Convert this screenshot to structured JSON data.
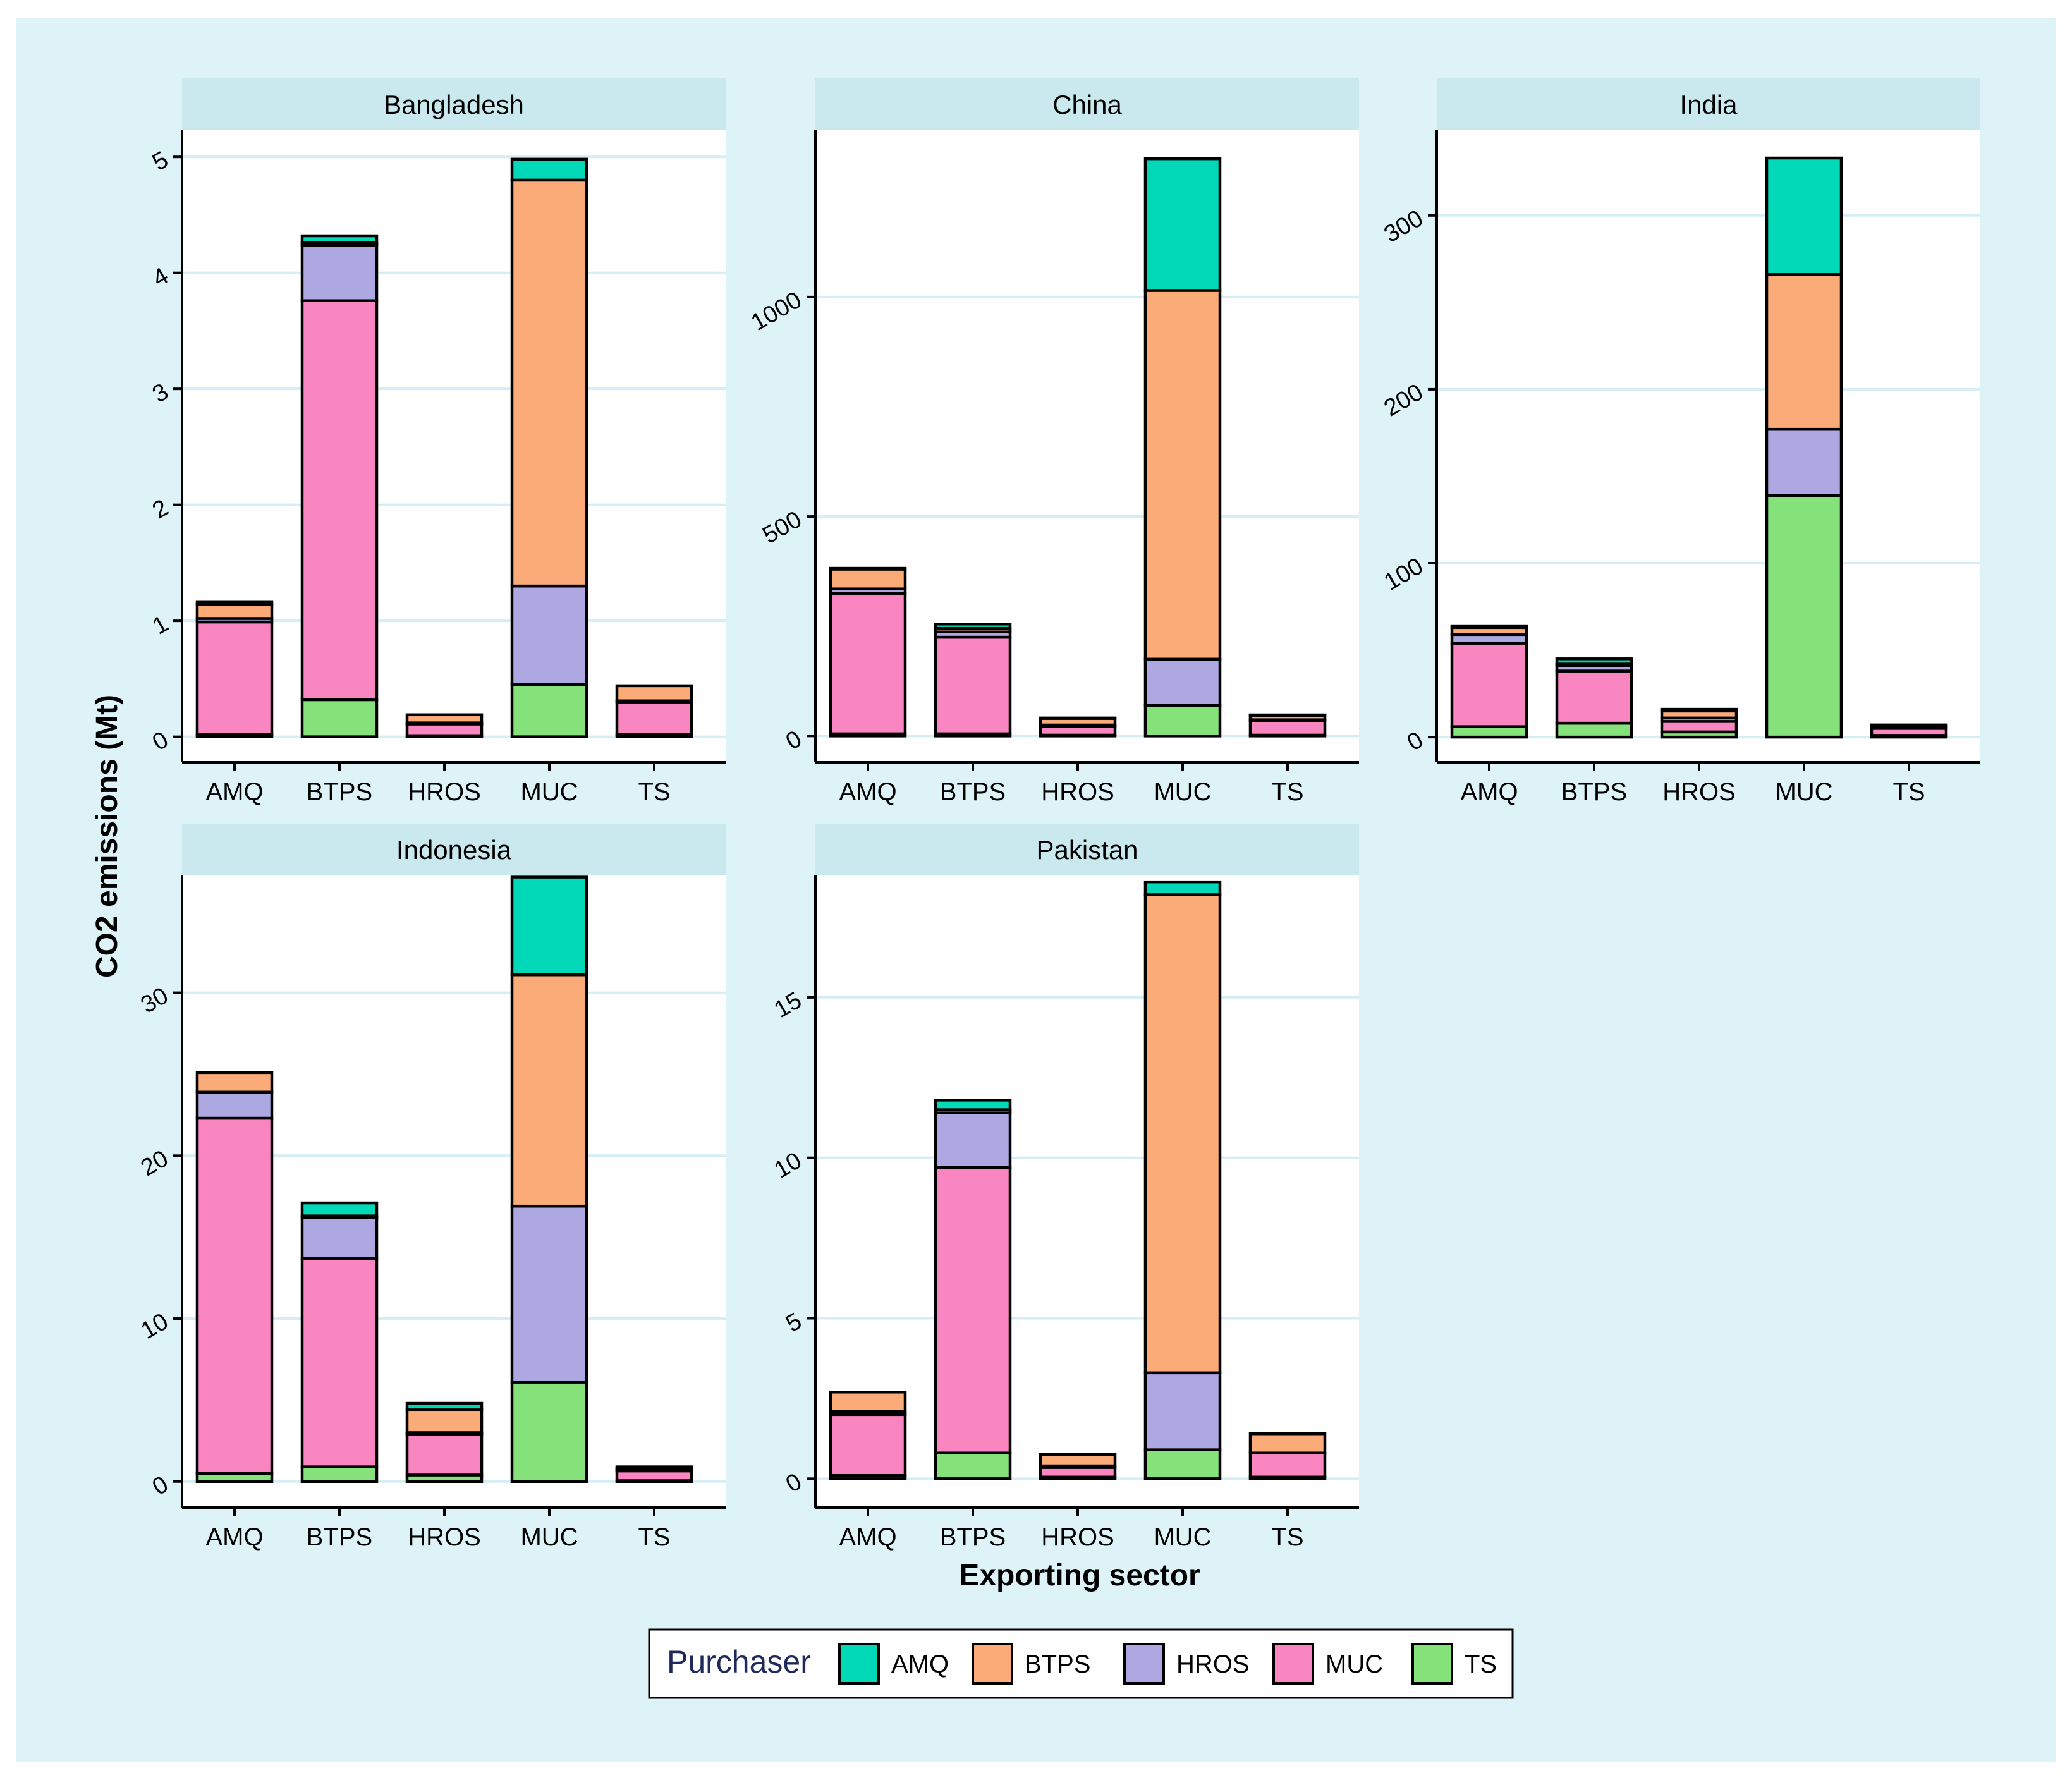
{
  "chart_data": {
    "type": "bar",
    "stacked": true,
    "xlabel": "Exporting sector",
    "ylabel": "CO2 emissions (Mt)",
    "categories": [
      "AMQ",
      "BTPS",
      "HROS",
      "MUC",
      "TS"
    ],
    "legend": {
      "title": "Purchaser",
      "placement": "bottom",
      "items": [
        "AMQ",
        "BTPS",
        "HROS",
        "MUC",
        "TS"
      ]
    },
    "colors": {
      "AMQ": "#00d8b8",
      "BTPS": "#fbab77",
      "HROS": "#ada7e2",
      "MUC": "#f985c1",
      "TS": "#85e27a"
    },
    "stack_order_bottom_to_top": [
      "TS",
      "MUC",
      "HROS",
      "BTPS",
      "AMQ"
    ],
    "panels": [
      {
        "title": "Bangladesh",
        "yticks": [
          0,
          1,
          2,
          3,
          4,
          5
        ],
        "ylim": [
          -0.22,
          5.23
        ],
        "bars": [
          {
            "category": "AMQ",
            "TS": 0.02,
            "MUC": 0.97,
            "HROS": 0.03,
            "BTPS": 0.12,
            "AMQ": 0.02
          },
          {
            "category": "BTPS",
            "TS": 0.32,
            "MUC": 3.44,
            "HROS": 0.48,
            "BTPS": 0.02,
            "AMQ": 0.06
          },
          {
            "category": "HROS",
            "TS": 0.01,
            "MUC": 0.1,
            "HROS": 0.01,
            "BTPS": 0.07,
            "AMQ": 0.0
          },
          {
            "category": "MUC",
            "TS": 0.45,
            "MUC": 0.0,
            "HROS": 0.85,
            "BTPS": 3.5,
            "AMQ": 0.18
          },
          {
            "category": "TS",
            "TS": 0.02,
            "MUC": 0.28,
            "HROS": 0.01,
            "BTPS": 0.13,
            "AMQ": 0.0
          }
        ]
      },
      {
        "title": "China",
        "yticks": [
          0,
          500,
          1000
        ],
        "ylim": [
          -60,
          1380
        ],
        "bars": [
          {
            "category": "AMQ",
            "TS": 5,
            "MUC": 320,
            "HROS": 10,
            "BTPS": 45,
            "AMQ": 2
          },
          {
            "category": "BTPS",
            "TS": 5,
            "MUC": 220,
            "HROS": 12,
            "BTPS": 8,
            "AMQ": 10
          },
          {
            "category": "HROS",
            "TS": 2,
            "MUC": 20,
            "HROS": 3,
            "BTPS": 15,
            "AMQ": 1
          },
          {
            "category": "MUC",
            "TS": 70,
            "MUC": 0,
            "HROS": 105,
            "BTPS": 840,
            "AMQ": 300
          },
          {
            "category": "TS",
            "TS": 2,
            "MUC": 32,
            "HROS": 3,
            "BTPS": 10,
            "AMQ": 1
          }
        ]
      },
      {
        "title": "India",
        "yticks": [
          0,
          100,
          200,
          300
        ],
        "ylim": [
          -14.5,
          349
        ],
        "bars": [
          {
            "category": "AMQ",
            "TS": 6,
            "MUC": 48,
            "HROS": 5,
            "BTPS": 4,
            "AMQ": 1
          },
          {
            "category": "BTPS",
            "TS": 8,
            "MUC": 30,
            "HROS": 3,
            "BTPS": 1,
            "AMQ": 3
          },
          {
            "category": "HROS",
            "TS": 3,
            "MUC": 6,
            "HROS": 2,
            "BTPS": 4,
            "AMQ": 1
          },
          {
            "category": "MUC",
            "TS": 139,
            "MUC": 0,
            "HROS": 38,
            "BTPS": 89,
            "AMQ": 67
          },
          {
            "category": "TS",
            "TS": 1,
            "MUC": 4,
            "HROS": 1,
            "BTPS": 1,
            "AMQ": 0
          }
        ]
      },
      {
        "title": "Indonesia",
        "yticks": [
          0,
          10,
          20,
          30
        ],
        "ylim": [
          -1.6,
          37.2
        ],
        "bars": [
          {
            "category": "AMQ",
            "TS": 0.5,
            "MUC": 21.8,
            "HROS": 1.6,
            "BTPS": 1.2,
            "AMQ": 0.0
          },
          {
            "category": "BTPS",
            "TS": 0.9,
            "MUC": 12.8,
            "HROS": 2.5,
            "BTPS": 0.1,
            "AMQ": 0.8
          },
          {
            "category": "HROS",
            "TS": 0.4,
            "MUC": 2.5,
            "HROS": 0.1,
            "BTPS": 1.4,
            "AMQ": 0.4
          },
          {
            "category": "MUC",
            "TS": 6.1,
            "MUC": 0.0,
            "HROS": 10.8,
            "BTPS": 14.2,
            "AMQ": 6.0
          },
          {
            "category": "TS",
            "TS": 0.05,
            "MUC": 0.6,
            "HROS": 0.05,
            "BTPS": 0.1,
            "AMQ": 0.1
          }
        ]
      },
      {
        "title": "Pakistan",
        "yticks": [
          0,
          5,
          10,
          15
        ],
        "ylim": [
          -0.9,
          18.8
        ],
        "bars": [
          {
            "category": "AMQ",
            "TS": 0.1,
            "MUC": 1.9,
            "HROS": 0.1,
            "BTPS": 0.6,
            "AMQ": 0.0
          },
          {
            "category": "BTPS",
            "TS": 0.8,
            "MUC": 8.9,
            "HROS": 1.7,
            "BTPS": 0.1,
            "AMQ": 0.3
          },
          {
            "category": "HROS",
            "TS": 0.05,
            "MUC": 0.3,
            "HROS": 0.05,
            "BTPS": 0.35,
            "AMQ": 0.0
          },
          {
            "category": "MUC",
            "TS": 0.9,
            "MUC": 0.0,
            "HROS": 2.4,
            "BTPS": 14.9,
            "AMQ": 0.4
          },
          {
            "category": "TS",
            "TS": 0.05,
            "MUC": 0.75,
            "HROS": 0.0,
            "BTPS": 0.6,
            "AMQ": 0.0
          }
        ]
      }
    ]
  }
}
